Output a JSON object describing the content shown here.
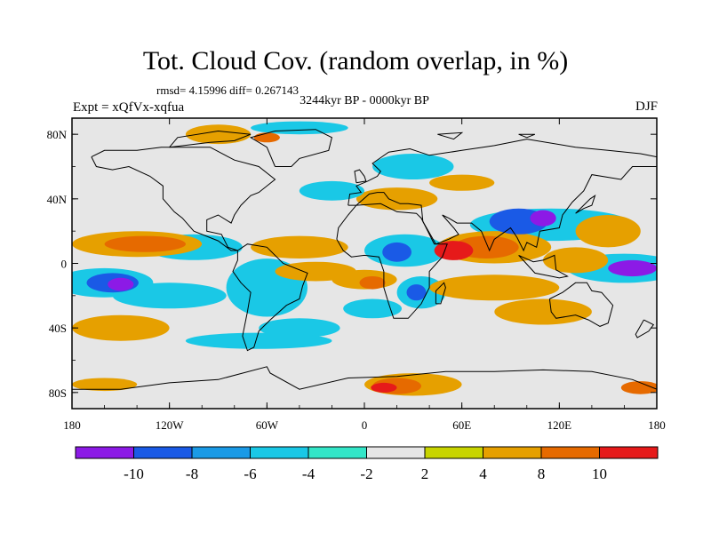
{
  "header": {
    "title": "Tot. Cloud Cov. (random overlap, in %)",
    "stats": "rmsd= 4.15996 diff= 0.267143",
    "period": "3244kyr BP - 0000kyr BP",
    "experiment": "Expt = xQfVx-xqfua",
    "season": "DJF"
  },
  "map": {
    "projection": "cylindrical-equidistant",
    "lon_range": [
      -180,
      180
    ],
    "lat_range": [
      -90,
      90
    ],
    "x_ticks": [
      {
        "value": -180,
        "label": "180"
      },
      {
        "value": -120,
        "label": "120W"
      },
      {
        "value": -60,
        "label": "60W"
      },
      {
        "value": 0,
        "label": "0"
      },
      {
        "value": 60,
        "label": "60E"
      },
      {
        "value": 120,
        "label": "120E"
      },
      {
        "value": 180,
        "label": "180"
      }
    ],
    "y_ticks": [
      {
        "value": 80,
        "label": "80N"
      },
      {
        "value": 40,
        "label": "40N"
      },
      {
        "value": 0,
        "label": "0"
      },
      {
        "value": -40,
        "label": "40S"
      },
      {
        "value": -80,
        "label": "80S"
      }
    ],
    "background_color": "#e6e6e6",
    "coast_color": "#000000",
    "anomaly_regions": [
      {
        "lon": 95,
        "lat": 26,
        "rx": 18,
        "ry": 8,
        "level": -8
      },
      {
        "lon": 110,
        "lat": 28,
        "rx": 8,
        "ry": 5,
        "level": -10
      },
      {
        "lon": 115,
        "lat": 24,
        "rx": 50,
        "ry": 10,
        "level": -4
      },
      {
        "lon": 25,
        "lat": 8,
        "rx": 25,
        "ry": 10,
        "level": -4
      },
      {
        "lon": 20,
        "lat": 7,
        "rx": 9,
        "ry": 6,
        "level": -8
      },
      {
        "lon": 35,
        "lat": -18,
        "rx": 15,
        "ry": 10,
        "level": -4
      },
      {
        "lon": 32,
        "lat": -18,
        "rx": 6,
        "ry": 5,
        "level": -8
      },
      {
        "lon": 160,
        "lat": -3,
        "rx": 35,
        "ry": 9,
        "level": -4
      },
      {
        "lon": 165,
        "lat": -3,
        "rx": 15,
        "ry": 5,
        "level": -10
      },
      {
        "lon": -105,
        "lat": 10,
        "rx": 30,
        "ry": 8,
        "level": -4
      },
      {
        "lon": -60,
        "lat": -15,
        "rx": 25,
        "ry": 18,
        "level": -4
      },
      {
        "lon": -120,
        "lat": -20,
        "rx": 35,
        "ry": 8,
        "level": -4
      },
      {
        "lon": -40,
        "lat": -40,
        "rx": 25,
        "ry": 6,
        "level": -4
      },
      {
        "lon": -65,
        "lat": -48,
        "rx": 45,
        "ry": 5,
        "level": -4
      },
      {
        "lon": 5,
        "lat": -28,
        "rx": 18,
        "ry": 6,
        "level": -4
      },
      {
        "lon": 30,
        "lat": 60,
        "rx": 25,
        "ry": 8,
        "level": -4
      },
      {
        "lon": -40,
        "lat": 84,
        "rx": 30,
        "ry": 4,
        "level": -4
      },
      {
        "lon": 80,
        "lat": 10,
        "rx": 35,
        "ry": 10,
        "level": 4
      },
      {
        "lon": 75,
        "lat": 10,
        "rx": 20,
        "ry": 7,
        "level": 8
      },
      {
        "lon": 55,
        "lat": 8,
        "rx": 12,
        "ry": 6,
        "level": 10
      },
      {
        "lon": 150,
        "lat": 20,
        "rx": 20,
        "ry": 10,
        "level": 4
      },
      {
        "lon": 130,
        "lat": 2,
        "rx": 20,
        "ry": 8,
        "level": 4
      },
      {
        "lon": -160,
        "lat": -12,
        "rx": 30,
        "ry": 9,
        "level": -4
      },
      {
        "lon": -155,
        "lat": -12,
        "rx": 16,
        "ry": 6,
        "level": -8
      },
      {
        "lon": -150,
        "lat": -13,
        "rx": 8,
        "ry": 4,
        "level": -10
      },
      {
        "lon": -140,
        "lat": 12,
        "rx": 40,
        "ry": 8,
        "level": 4
      },
      {
        "lon": -135,
        "lat": 12,
        "rx": 25,
        "ry": 5,
        "level": 8
      },
      {
        "lon": -150,
        "lat": -40,
        "rx": 30,
        "ry": 8,
        "level": 4
      },
      {
        "lon": -40,
        "lat": 10,
        "rx": 30,
        "ry": 7,
        "level": 4
      },
      {
        "lon": -30,
        "lat": -5,
        "rx": 25,
        "ry": 6,
        "level": 4
      },
      {
        "lon": 0,
        "lat": -10,
        "rx": 20,
        "ry": 6,
        "level": 4
      },
      {
        "lon": 5,
        "lat": -12,
        "rx": 8,
        "ry": 4,
        "level": 8
      },
      {
        "lon": 80,
        "lat": -15,
        "rx": 40,
        "ry": 8,
        "level": 4
      },
      {
        "lon": 110,
        "lat": -30,
        "rx": 30,
        "ry": 8,
        "level": 4
      },
      {
        "lon": 30,
        "lat": -75,
        "rx": 30,
        "ry": 7,
        "level": 4
      },
      {
        "lon": 20,
        "lat": -76,
        "rx": 15,
        "ry": 5,
        "level": 8
      },
      {
        "lon": 12,
        "lat": -77,
        "rx": 8,
        "ry": 3,
        "level": 10
      },
      {
        "lon": -160,
        "lat": -75,
        "rx": 20,
        "ry": 4,
        "level": 4
      },
      {
        "lon": 170,
        "lat": -77,
        "rx": 12,
        "ry": 4,
        "level": 8
      },
      {
        "lon": -90,
        "lat": 80,
        "rx": 20,
        "ry": 6,
        "level": 4
      },
      {
        "lon": -60,
        "lat": 78,
        "rx": 8,
        "ry": 3,
        "level": 8
      },
      {
        "lon": 20,
        "lat": 40,
        "rx": 25,
        "ry": 7,
        "level": 4
      },
      {
        "lon": 60,
        "lat": 50,
        "rx": 20,
        "ry": 5,
        "level": 4
      },
      {
        "lon": -20,
        "lat": 45,
        "rx": 20,
        "ry": 6,
        "level": -4
      }
    ]
  },
  "colorbar": {
    "levels": [
      -12,
      -10,
      -8,
      -6,
      -4,
      -2,
      2,
      4,
      8,
      10,
      12
    ],
    "labels": [
      "-10",
      "-8",
      "-6",
      "-4",
      "-2",
      "2",
      "4",
      "8",
      "10"
    ],
    "colors": [
      "#8c1ae6",
      "#1a5ae6",
      "#1a9ae6",
      "#1ac8e6",
      "#33e6c8",
      "#e6e6e6",
      "#c8d400",
      "#e6a000",
      "#e66a00",
      "#e61a1a"
    ]
  }
}
